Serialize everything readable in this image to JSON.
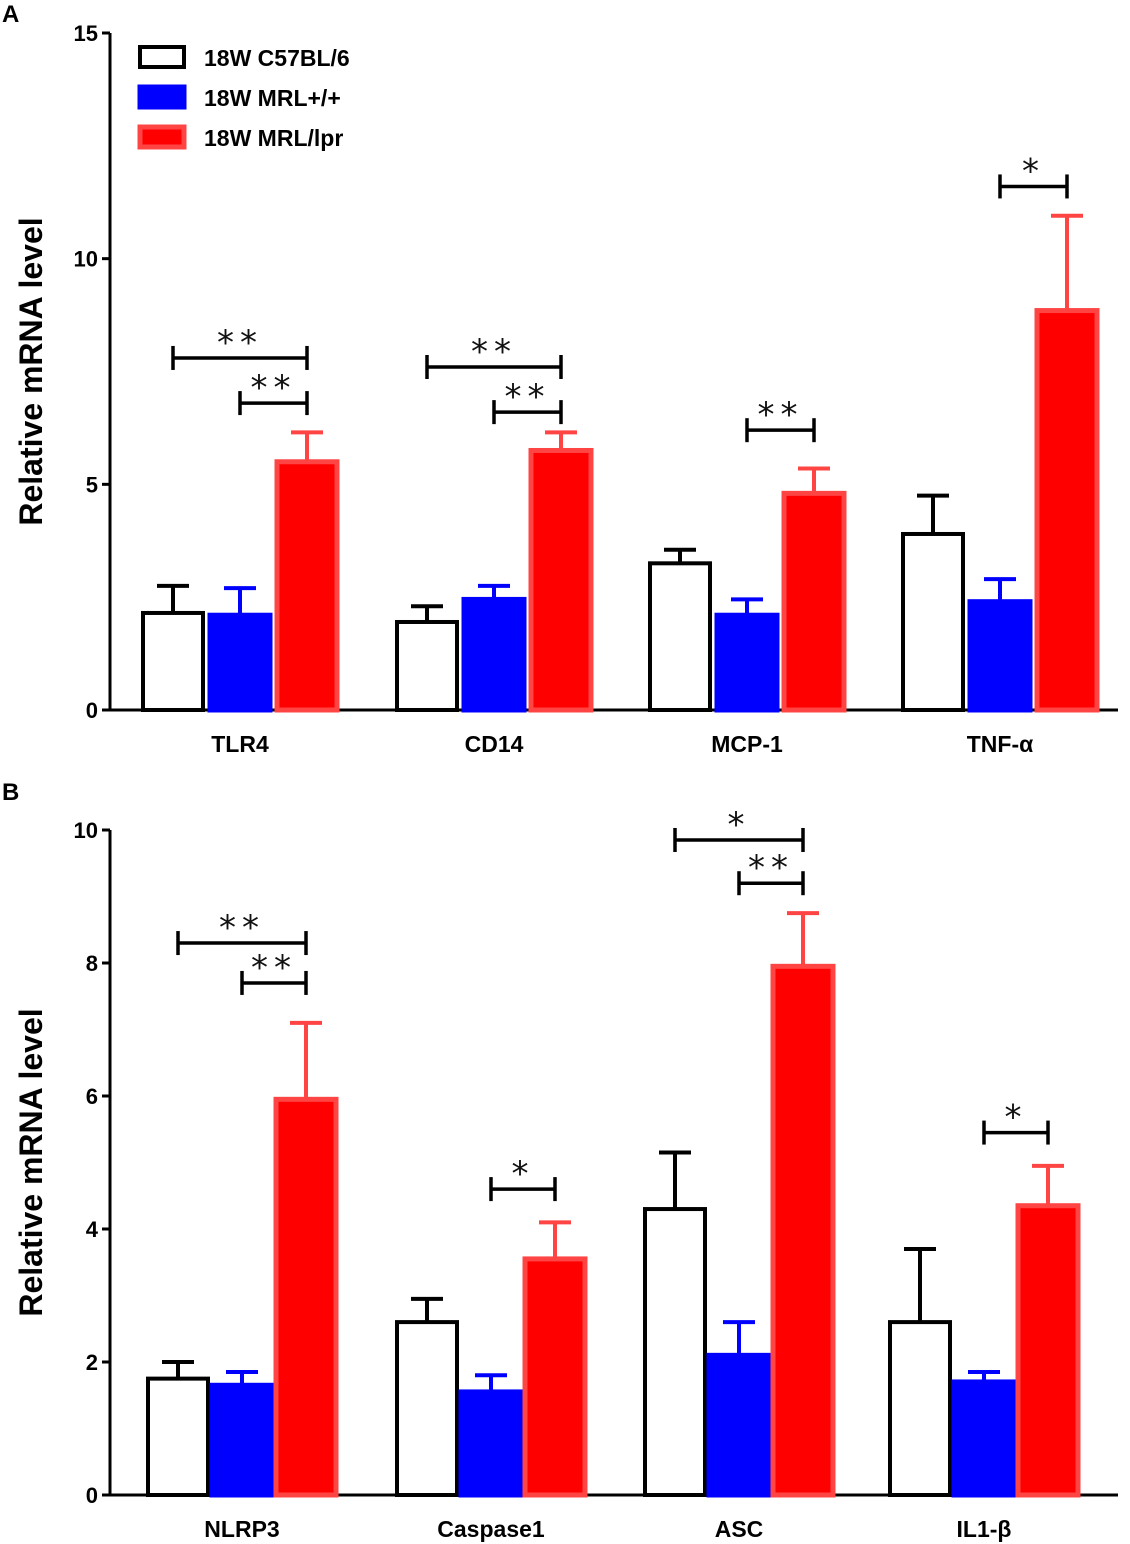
{
  "legend": [
    {
      "name": "18W C57BL/6",
      "fill": "#ffffff",
      "stroke": "#000000"
    },
    {
      "name": "18W MRL+/+",
      "fill": "#0000ff",
      "stroke": "#0000ff"
    },
    {
      "name": "18W MRL/lpr",
      "fill": "#ff0000",
      "stroke": "#ff4444"
    }
  ],
  "chart_data": [
    {
      "panel": "A",
      "type": "bar",
      "ylabel": "Relative mRNA level",
      "xlabel": "",
      "ylim": [
        0,
        15
      ],
      "yticks": [
        "0",
        "5",
        "10",
        "15"
      ],
      "categories": [
        "TLR4",
        "CD14",
        "MCP-1",
        "TNF-α"
      ],
      "series": [
        {
          "name": "18W C57BL/6",
          "values": [
            2.15,
            1.95,
            3.25,
            3.9
          ],
          "errors": [
            0.6,
            0.35,
            0.3,
            0.85
          ]
        },
        {
          "name": "18W MRL+/+",
          "values": [
            2.1,
            2.45,
            2.1,
            2.4
          ],
          "errors": [
            0.6,
            0.3,
            0.35,
            0.5
          ]
        },
        {
          "name": "18W MRL/lpr",
          "values": [
            5.5,
            5.75,
            4.8,
            8.85
          ],
          "errors": [
            0.65,
            0.4,
            0.55,
            2.1
          ]
        }
      ],
      "significance": [
        {
          "category": 0,
          "from_series": 0,
          "to_series": 2,
          "label": "**",
          "y": 7.8
        },
        {
          "category": 0,
          "from_series": 1,
          "to_series": 2,
          "label": "**",
          "y": 6.8
        },
        {
          "category": 1,
          "from_series": 0,
          "to_series": 2,
          "label": "**",
          "y": 7.6
        },
        {
          "category": 1,
          "from_series": 1,
          "to_series": 2,
          "label": "**",
          "y": 6.6
        },
        {
          "category": 2,
          "from_series": 1,
          "to_series": 2,
          "label": "**",
          "y": 6.2
        },
        {
          "category": 3,
          "from_series": 1,
          "to_series": 2,
          "label": "*",
          "y": 11.6
        }
      ]
    },
    {
      "panel": "B",
      "type": "bar",
      "ylabel": "Relative mRNA level",
      "xlabel": "",
      "ylim": [
        0,
        10
      ],
      "yticks": [
        "0",
        "2",
        "4",
        "6",
        "8",
        "10"
      ],
      "categories": [
        "NLRP3",
        "Caspase1",
        "ASC",
        "IL1-β"
      ],
      "series": [
        {
          "name": "18W C57BL/6",
          "values": [
            1.75,
            2.6,
            4.3,
            2.6
          ],
          "errors": [
            0.25,
            0.35,
            0.85,
            1.1
          ]
        },
        {
          "name": "18W MRL+/+",
          "values": [
            1.65,
            1.55,
            2.1,
            1.7
          ],
          "errors": [
            0.2,
            0.25,
            0.5,
            0.15
          ]
        },
        {
          "name": "18W MRL/lpr",
          "values": [
            5.95,
            3.55,
            7.95,
            4.35
          ],
          "errors": [
            1.15,
            0.55,
            0.8,
            0.6
          ]
        }
      ],
      "significance": [
        {
          "category": 0,
          "from_series": 0,
          "to_series": 2,
          "label": "**",
          "y": 8.3
        },
        {
          "category": 0,
          "from_series": 1,
          "to_series": 2,
          "label": "**",
          "y": 7.7
        },
        {
          "category": 1,
          "from_series": 1,
          "to_series": 2,
          "label": "*",
          "y": 4.6
        },
        {
          "category": 2,
          "from_series": 0,
          "to_series": 2,
          "label": "*",
          "y": 9.85
        },
        {
          "category": 2,
          "from_series": 1,
          "to_series": 2,
          "label": "**",
          "y": 9.2
        },
        {
          "category": 3,
          "from_series": 1,
          "to_series": 2,
          "label": "*",
          "y": 5.45
        }
      ]
    }
  ]
}
